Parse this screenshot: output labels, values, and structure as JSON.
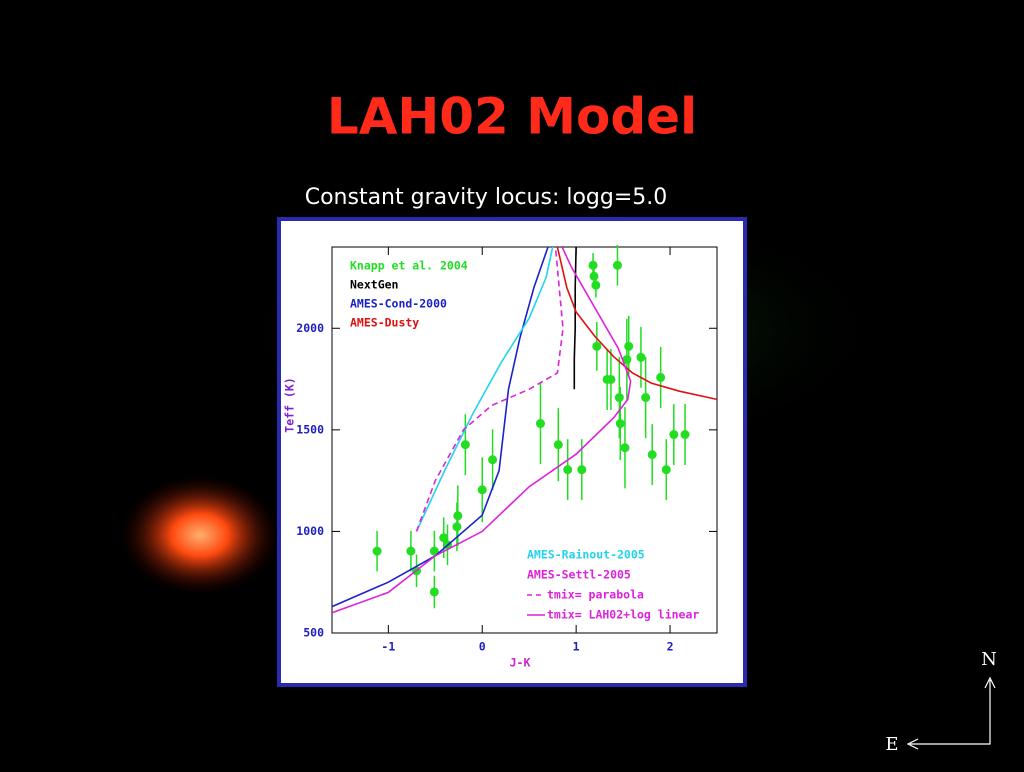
{
  "slide": {
    "title": "LAH02 Model",
    "subtitle": "Constant gravity locus: logg=5.0"
  },
  "compass": {
    "north": "N",
    "east": "E"
  },
  "chart_data": {
    "type": "line",
    "xlabel": "J-K",
    "ylabel": "Teff (K)",
    "xlim": [
      -1.6,
      2.5
    ],
    "ylim": [
      500,
      2400
    ],
    "xticks": [
      -1,
      0,
      1,
      2
    ],
    "yticks": [
      500,
      1000,
      1500,
      2000
    ],
    "series": [
      {
        "name": "Knapp et al. 2004",
        "color": "#22dd22",
        "mode": "markers",
        "legend": "top",
        "x": [
          -1.12,
          -0.76,
          -0.7,
          -0.51,
          -0.51,
          -0.41,
          -0.37,
          -0.27,
          -0.26,
          -0.18,
          0.0,
          0.11,
          0.62,
          0.81,
          0.91,
          1.06,
          1.18,
          1.19,
          1.21,
          1.22,
          1.33,
          1.37,
          1.44,
          1.46,
          1.47,
          1.52,
          1.54,
          1.56,
          1.69,
          1.74,
          1.81,
          1.9,
          1.96,
          2.04,
          2.16
        ],
        "values": [
          903,
          903,
          806,
          702,
          903,
          969,
          934,
          1023,
          1077,
          1427,
          1205,
          1353,
          1531,
          1427,
          1304,
          1304,
          2310,
          2256,
          2212,
          1911,
          1748,
          1748,
          2310,
          1659,
          1531,
          1412,
          1846,
          1911,
          1857,
          1659,
          1378,
          1758,
          1304,
          1477,
          1477
        ],
        "errors": [
          100,
          100,
          80,
          80,
          100,
          100,
          100,
          120,
          150,
          150,
          160,
          150,
          200,
          180,
          150,
          150,
          60,
          60,
          60,
          120,
          150,
          150,
          100,
          200,
          180,
          200,
          200,
          150,
          150,
          200,
          150,
          150,
          150,
          150,
          150
        ]
      },
      {
        "name": "NextGen",
        "color": "#000000",
        "mode": "solid",
        "legend": "top",
        "x": [
          1.0,
          0.99,
          0.99,
          0.98,
          0.98
        ],
        "values": [
          2400,
          2200,
          2000,
          1850,
          1700
        ]
      },
      {
        "name": "AMES-Cond-2000",
        "color": "#1a22c8",
        "mode": "solid",
        "legend": "top",
        "x": [
          -1.6,
          -1.0,
          -0.5,
          0.0,
          0.18,
          0.23,
          0.28,
          0.4,
          0.55,
          0.7
        ],
        "values": [
          630,
          750,
          880,
          1080,
          1300,
          1500,
          1700,
          1950,
          2200,
          2400
        ]
      },
      {
        "name": "AMES-Dusty",
        "color": "#e01010",
        "mode": "solid",
        "legend": "top",
        "x": [
          0.8,
          0.9,
          1.0,
          1.2,
          1.4,
          1.6,
          1.8,
          2.1,
          2.5
        ],
        "values": [
          2400,
          2200,
          2080,
          1960,
          1860,
          1780,
          1730,
          1690,
          1650
        ]
      },
      {
        "name": "AMES-Rainout-2005",
        "color": "#22d4ee",
        "mode": "solid",
        "legend": "bottom",
        "x": [
          -0.7,
          -0.4,
          -0.1,
          0.2,
          0.5,
          0.68,
          0.75
        ],
        "values": [
          1000,
          1300,
          1580,
          1830,
          2050,
          2250,
          2400
        ]
      },
      {
        "name": "AMES-Settl-2005",
        "color": "#dd22dd",
        "mode": "solid",
        "legend": "bottom",
        "x": [],
        "values": []
      },
      {
        "name": "tmix= parabola",
        "color": "#dd22dd",
        "mode": "dashed",
        "legend": "bottom",
        "x": [
          -0.7,
          -0.5,
          -0.2,
          0.1,
          0.5,
          0.8,
          0.86,
          0.82,
          0.78
        ],
        "values": [
          1000,
          1250,
          1500,
          1620,
          1700,
          1780,
          2000,
          2200,
          2400
        ]
      },
      {
        "name": "tmix= LAH02+log linear",
        "color": "#dd22dd",
        "mode": "solid",
        "legend": "bottom",
        "x": [
          -1.6,
          -1.0,
          -0.5,
          0.0,
          0.5,
          1.0,
          1.4,
          1.55,
          1.58,
          1.45,
          1.2,
          0.95,
          0.85
        ],
        "values": [
          600,
          700,
          880,
          1000,
          1220,
          1380,
          1560,
          1650,
          1740,
          1900,
          2100,
          2300,
          2400
        ]
      }
    ]
  }
}
